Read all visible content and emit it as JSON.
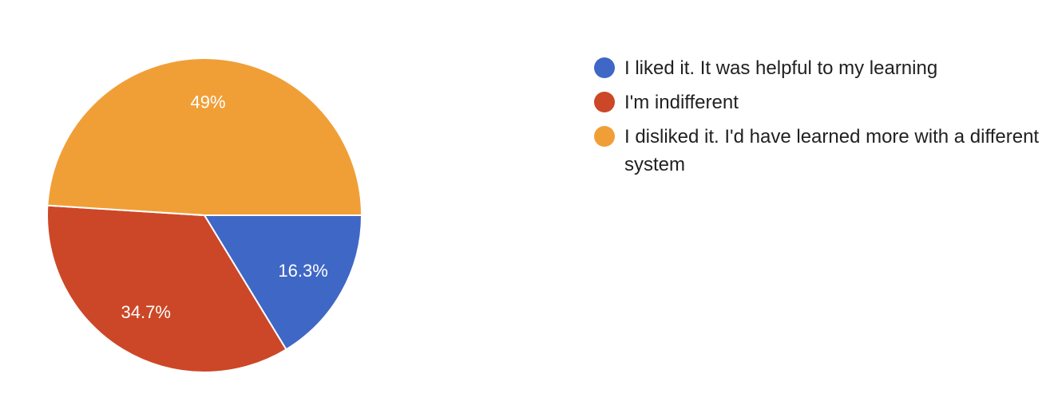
{
  "chart_data": {
    "type": "pie",
    "categories": [
      "I liked it. It was helpful to my learning",
      "I'm indifferent",
      "I disliked it. I'd have learned more with a different system"
    ],
    "values": [
      16.3,
      34.7,
      49
    ],
    "value_labels": [
      "16.3%",
      "34.7%",
      "49%"
    ],
    "colors": [
      "#3f67c6",
      "#cc4727",
      "#f09f37"
    ],
    "start_angle_deg": 0,
    "direction": "clockwise",
    "legend_position": "right"
  }
}
